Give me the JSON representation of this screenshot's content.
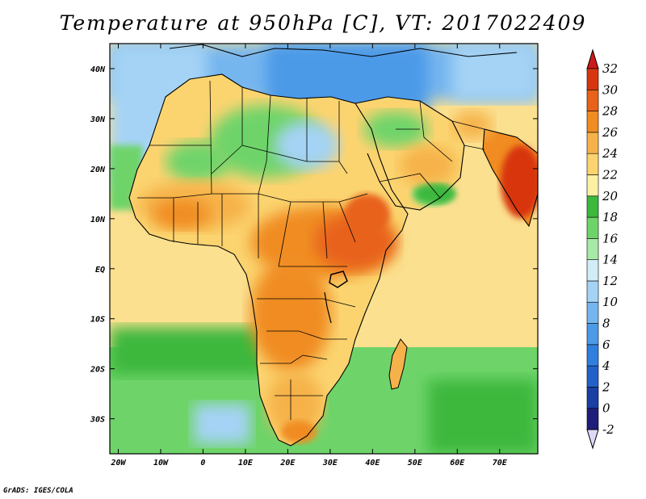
{
  "title": "Temperature at 950hPa [C], VT: 2017022409",
  "credit": "GrADS: IGES/COLA",
  "map": {
    "projection": "lat-lon",
    "lon_range": [
      -22,
      79
    ],
    "lat_range": [
      -37,
      45
    ],
    "lat_ticks": [
      {
        "value": 40,
        "label": "40N"
      },
      {
        "value": 30,
        "label": "30N"
      },
      {
        "value": 20,
        "label": "20N"
      },
      {
        "value": 10,
        "label": "10N"
      },
      {
        "value": 0,
        "label": "EQ"
      },
      {
        "value": -10,
        "label": "10S"
      },
      {
        "value": -20,
        "label": "20S"
      },
      {
        "value": -30,
        "label": "30S"
      }
    ],
    "lon_ticks": [
      {
        "value": -20,
        "label": "20W"
      },
      {
        "value": -10,
        "label": "10W"
      },
      {
        "value": 0,
        "label": "0"
      },
      {
        "value": 10,
        "label": "10E"
      },
      {
        "value": 20,
        "label": "20E"
      },
      {
        "value": 30,
        "label": "30E"
      },
      {
        "value": 40,
        "label": "40E"
      },
      {
        "value": 50,
        "label": "50E"
      },
      {
        "value": 60,
        "label": "60E"
      },
      {
        "value": 70,
        "label": "70E"
      }
    ]
  },
  "colorbar": {
    "levels": [
      -2,
      0,
      2,
      4,
      6,
      8,
      10,
      12,
      14,
      16,
      18,
      20,
      22,
      24,
      26,
      28,
      30,
      32
    ],
    "colors": [
      "#1e1e7a",
      "#1a3fa5",
      "#2261c8",
      "#2f7fde",
      "#4c9ae8",
      "#76b6ef",
      "#a4d3f5",
      "#d2ecf6",
      "#a7e9a7",
      "#6ed46a",
      "#3cb83c",
      "#fdf0a3",
      "#fbd470",
      "#f6b24a",
      "#f08c22",
      "#e8621a",
      "#d8360f"
    ],
    "below_color": "#e0d8f8",
    "above_color": "#cc1a1a"
  },
  "palette": {
    "ocean_warm": "#fbe08f",
    "ocean_green": "#3cb83c",
    "ocean_cool": "#6ed46a",
    "med_cool": "#76b6ef",
    "land_hot": "#f08c22",
    "land_very_hot": "#e8621a",
    "land_warm": "#f6b24a",
    "land_mild": "#fbd470",
    "land_green": "#6ed46a",
    "land_cool": "#a4d3f5"
  }
}
